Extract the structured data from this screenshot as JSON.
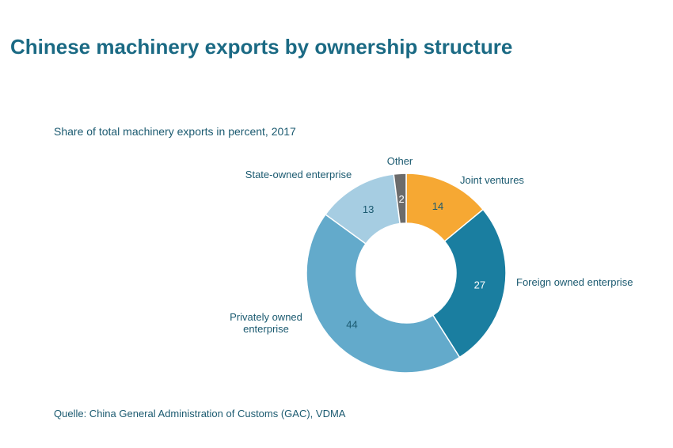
{
  "title": "Chinese machinery exports by ownership structure",
  "subtitle": "Share of total machinery exports in percent, 2017",
  "source": "Quelle: China General Administration of Customs (GAC), VDMA",
  "chart_data": {
    "type": "pie",
    "donut": true,
    "title": "Chinese machinery exports by ownership structure",
    "subtitle": "Share of total machinery exports in percent, 2017",
    "unit": "percent",
    "legend": "none",
    "slices": [
      {
        "label": "Joint ventures",
        "value": 14,
        "color": "#f6a833",
        "value_color": "#1b5a70"
      },
      {
        "label": "Foreign owned enterprise",
        "value": 27,
        "color": "#1a7ea0",
        "value_color": "#ffffff"
      },
      {
        "label": "Privately owned enterprise",
        "label_lines": [
          "Privately owned",
          "enterprise"
        ],
        "value": 44,
        "color": "#63aacb",
        "value_color": "#1b5a70"
      },
      {
        "label": "State-owned enterprise",
        "value": 13,
        "color": "#a6cde2",
        "value_color": "#1b5a70"
      },
      {
        "label": "Other",
        "value": 2,
        "color": "#6b6b6b",
        "value_color": "#ffffff"
      }
    ]
  }
}
